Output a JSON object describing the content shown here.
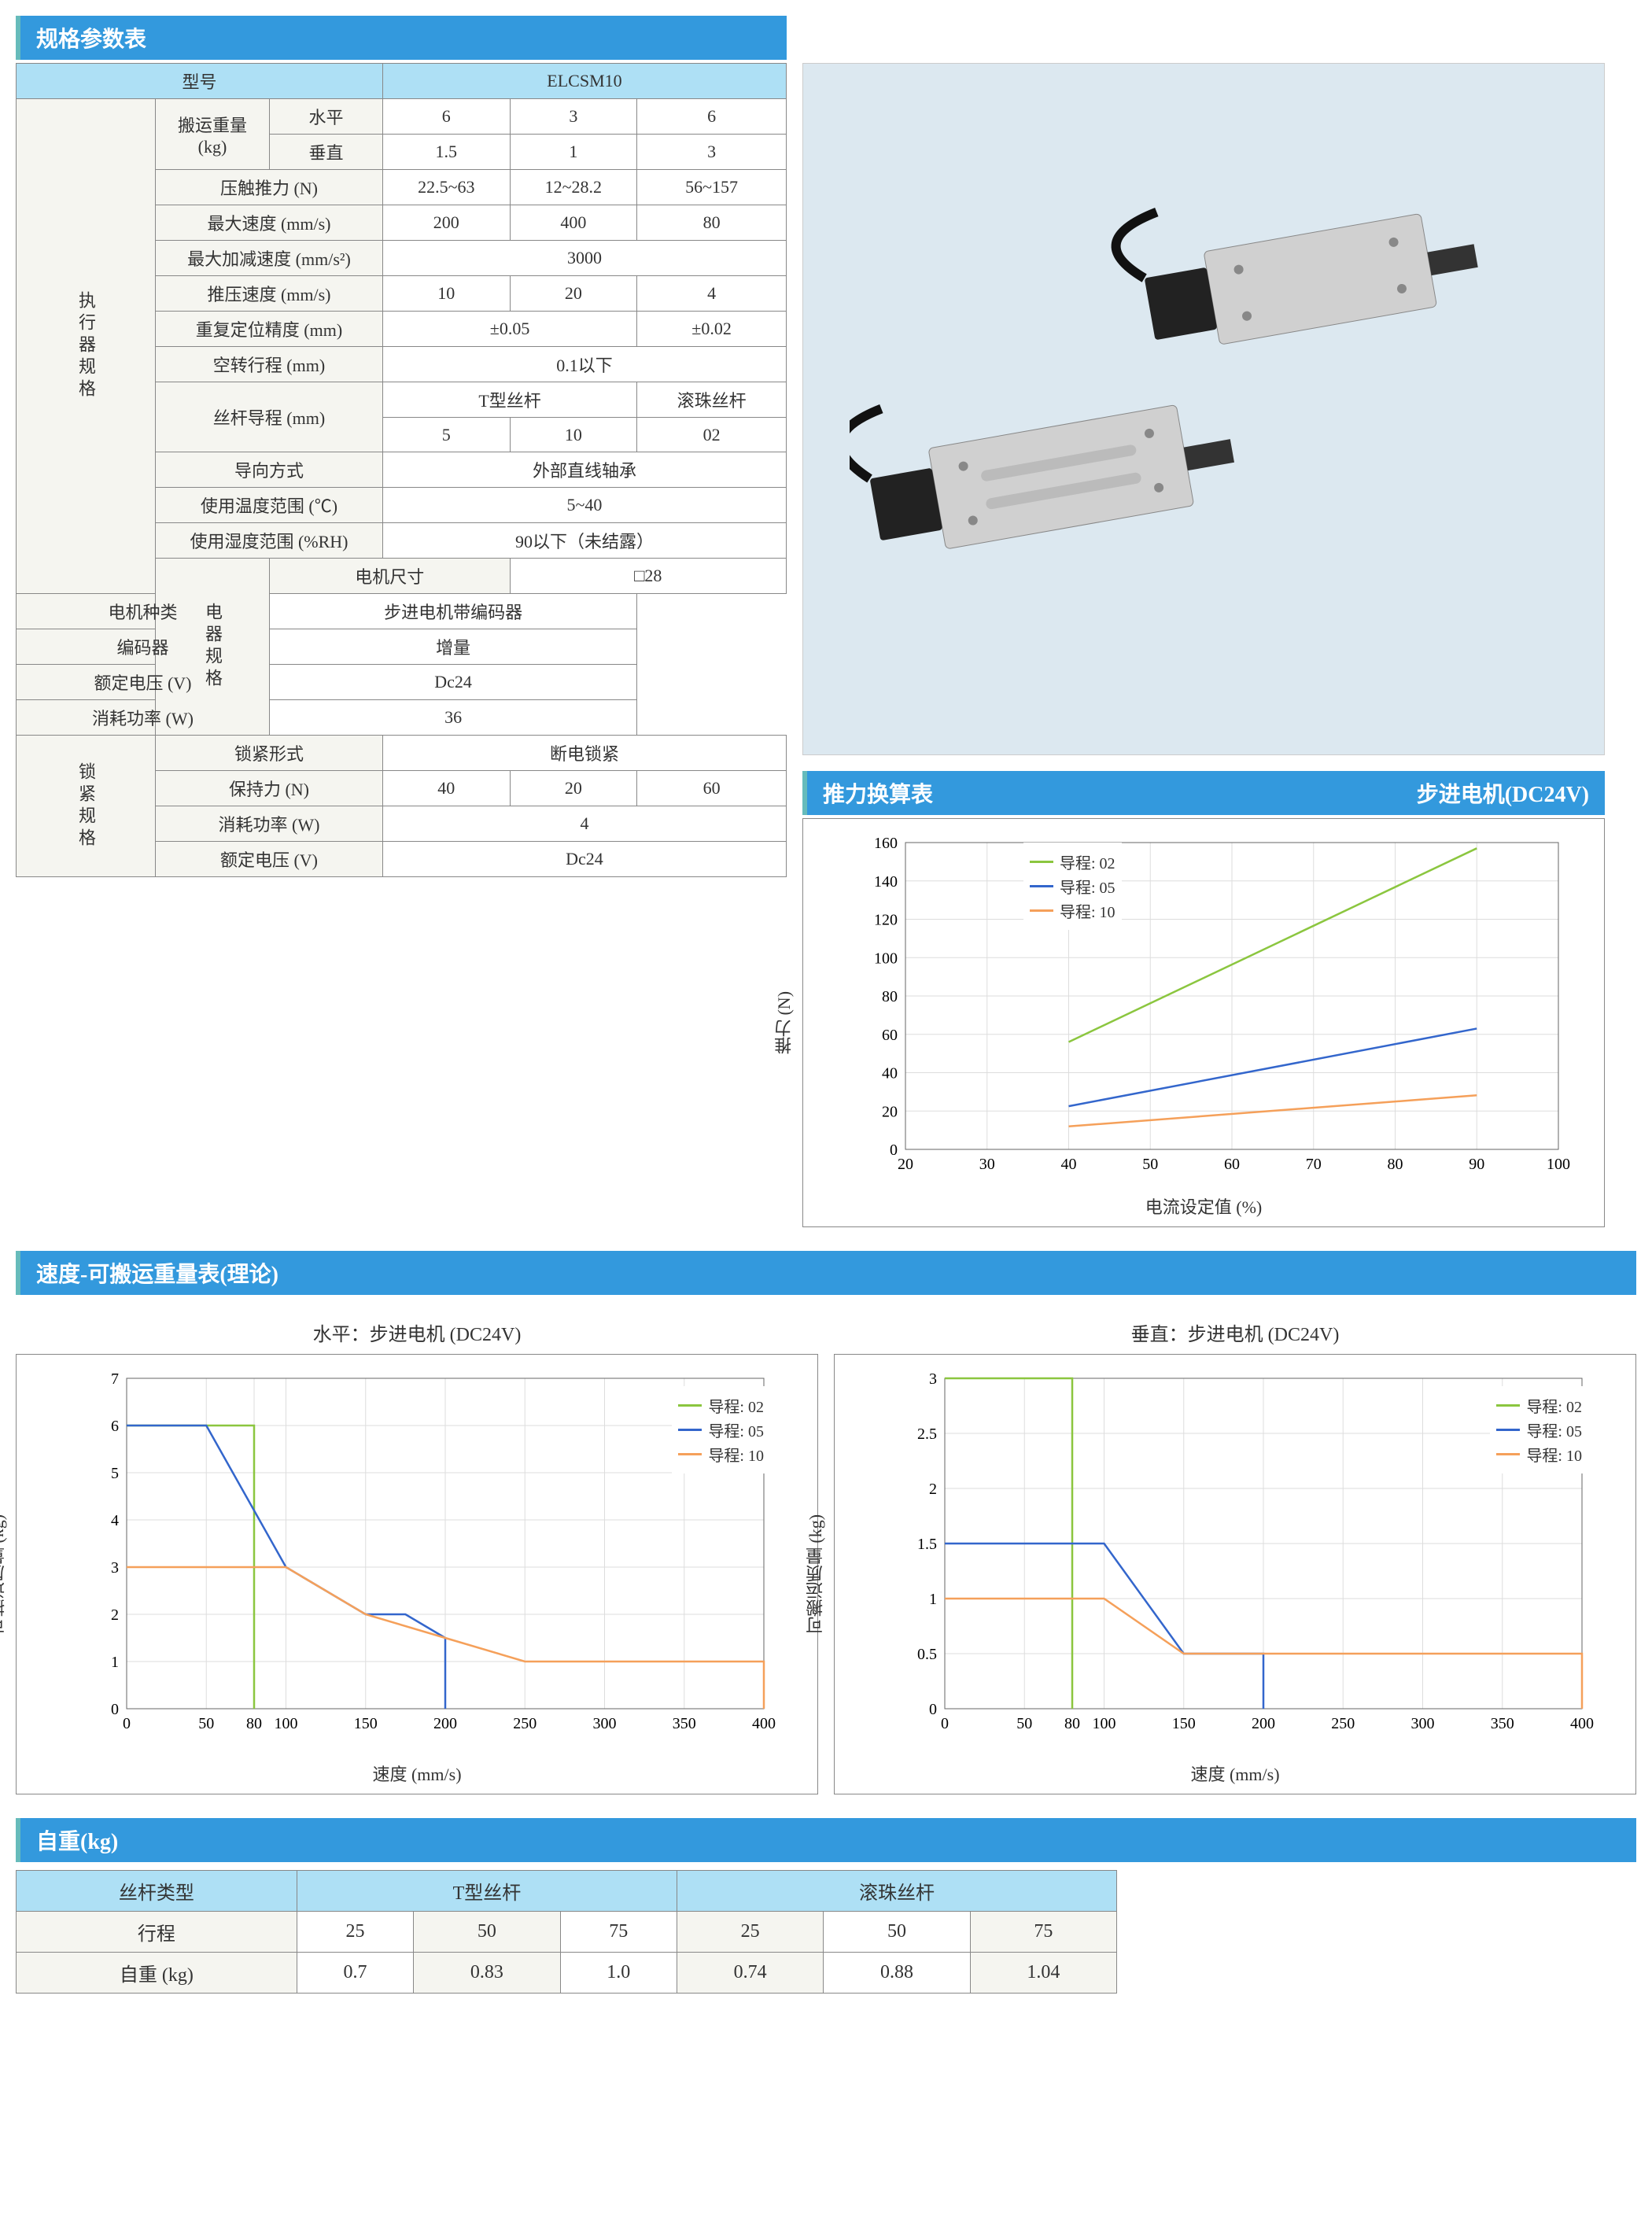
{
  "headers": {
    "spec": "规格参数表",
    "thrust": "推力换算表",
    "thrust_sub": "步进电机(DC24V)",
    "speed": "速度-可搬运重量表(理论)",
    "weight": "自重(kg)"
  },
  "spec": {
    "model_label": "型号",
    "model_value": "ELCSM10",
    "sections": {
      "actuator": "执行器规格",
      "elec": "电器规格",
      "lock": "锁紧规格"
    },
    "rows": {
      "carry_label": "搬运重量\n(kg)",
      "carry_h_label": "水平",
      "carry_h": [
        "6",
        "3",
        "6"
      ],
      "carry_v_label": "垂直",
      "carry_v": [
        "1.5",
        "1",
        "3"
      ],
      "press_label": "压触推力 (N)",
      "press": [
        "22.5~63",
        "12~28.2",
        "56~157"
      ],
      "vmax_label": "最大速度 (mm/s)",
      "vmax": [
        "200",
        "400",
        "80"
      ],
      "accel_label": "最大加减速度 (mm/s²)",
      "accel": "3000",
      "pspeed_label": "推压速度 (mm/s)",
      "pspeed": [
        "10",
        "20",
        "4"
      ],
      "repeat_label": "重复定位精度 (mm)",
      "repeat": [
        "±0.05",
        "±0.02"
      ],
      "lost_label": "空转行程 (mm)",
      "lost": "0.1以下",
      "lead_label": "丝杆导程 (mm)",
      "lead_h": [
        "T型丝杆",
        "滚珠丝杆"
      ],
      "lead_v": [
        "5",
        "10",
        "02"
      ],
      "guide_label": "导向方式",
      "guide": "外部直线轴承",
      "temp_label": "使用温度范围 (℃)",
      "temp": "5~40",
      "humid_label": "使用湿度范围 (%RH)",
      "humid": "90以下（未结露）",
      "msize_label": "电机尺寸",
      "msize": "□28",
      "mtype_label": "电机种类",
      "mtype": "步进电机带编码器",
      "enc_label": "编码器",
      "enc": "增量",
      "volt_label": "额定电压 (V)",
      "volt": "Dc24",
      "power_label": "消耗功率 (W)",
      "power": "36",
      "ltype_label": "锁紧形式",
      "ltype": "断电锁紧",
      "hold_label": "保持力 (N)",
      "hold": [
        "40",
        "20",
        "60"
      ],
      "lpower_label": "消耗功率 (W)",
      "lpower": "4",
      "lvolt_label": "额定电压 (V)",
      "lvolt": "Dc24"
    }
  },
  "colors": {
    "lead02": "#8bc63f",
    "lead05": "#3366cc",
    "lead10": "#f5a05a",
    "grid": "#dddddd",
    "axis": "#666666",
    "header_bg": "#3399dd",
    "cell_hdr": "#aee0f5",
    "cell_lbl": "#f5f5f0"
  },
  "thrust_chart": {
    "xlabel": "电流设定值 (%)",
    "ylabel": "推力 (N)",
    "xlim": [
      20,
      100
    ],
    "xticks": [
      20,
      30,
      40,
      50,
      60,
      70,
      80,
      90,
      100
    ],
    "ylim": [
      0,
      160
    ],
    "yticks": [
      0,
      20,
      40,
      60,
      80,
      100,
      120,
      140,
      160
    ],
    "legend_labels": [
      "导程: 02",
      "导程: 05",
      "导程: 10"
    ],
    "series": {
      "lead02": [
        [
          40,
          56
        ],
        [
          90,
          157
        ]
      ],
      "lead05": [
        [
          40,
          22.5
        ],
        [
          90,
          63
        ]
      ],
      "lead10": [
        [
          40,
          12
        ],
        [
          90,
          28.2
        ]
      ]
    }
  },
  "speed_h_chart": {
    "title": "水平：步进电机 (DC24V)",
    "xlabel": "速度 (mm/s)",
    "ylabel": "可搬运质量 (kg)",
    "xlim": [
      0,
      400
    ],
    "xticks": [
      0,
      50,
      80,
      100,
      150,
      200,
      250,
      300,
      350,
      400
    ],
    "ylim": [
      0,
      7
    ],
    "yticks": [
      0,
      1,
      2,
      3,
      4,
      5,
      6,
      7
    ],
    "legend_labels": [
      "导程: 02",
      "导程: 05",
      "导程: 10"
    ],
    "series": {
      "lead02": [
        [
          0,
          6
        ],
        [
          80,
          6
        ],
        [
          80,
          0
        ]
      ],
      "lead05": [
        [
          0,
          6
        ],
        [
          50,
          6
        ],
        [
          100,
          3
        ],
        [
          150,
          2
        ],
        [
          175,
          2
        ],
        [
          200,
          1.5
        ],
        [
          200,
          0
        ]
      ],
      "lead10": [
        [
          0,
          3
        ],
        [
          100,
          3
        ],
        [
          150,
          2
        ],
        [
          200,
          1.5
        ],
        [
          250,
          1
        ],
        [
          400,
          1
        ],
        [
          400,
          0
        ]
      ]
    }
  },
  "speed_v_chart": {
    "title": "垂直：步进电机 (DC24V)",
    "xlabel": "速度 (mm/s)",
    "ylabel": "可搬运质量 (kg)",
    "xlim": [
      0,
      400
    ],
    "xticks": [
      0,
      50,
      80,
      100,
      150,
      200,
      250,
      300,
      350,
      400
    ],
    "ylim": [
      0,
      3.0
    ],
    "yticks": [
      0,
      0.5,
      1.0,
      1.5,
      2.0,
      2.5,
      3.0
    ],
    "legend_labels": [
      "导程: 02",
      "导程: 05",
      "导程: 10"
    ],
    "series": {
      "lead02": [
        [
          0,
          3.0
        ],
        [
          80,
          3.0
        ],
        [
          80,
          0
        ]
      ],
      "lead05": [
        [
          0,
          1.5
        ],
        [
          100,
          1.5
        ],
        [
          150,
          0.5
        ],
        [
          200,
          0.5
        ],
        [
          200,
          0
        ]
      ],
      "lead10": [
        [
          0,
          1.0
        ],
        [
          100,
          1.0
        ],
        [
          150,
          0.5
        ],
        [
          400,
          0.5
        ],
        [
          400,
          0
        ]
      ]
    }
  },
  "weight": {
    "screw_type_label": "丝杆类型",
    "screw_types": [
      "T型丝杆",
      "滚珠丝杆"
    ],
    "stroke_label": "行程",
    "strokes": [
      "25",
      "50",
      "75",
      "25",
      "50",
      "75"
    ],
    "weight_label": "自重 (kg)",
    "weights": [
      "0.7",
      "0.83",
      "1.0",
      "0.74",
      "0.88",
      "1.04"
    ]
  }
}
